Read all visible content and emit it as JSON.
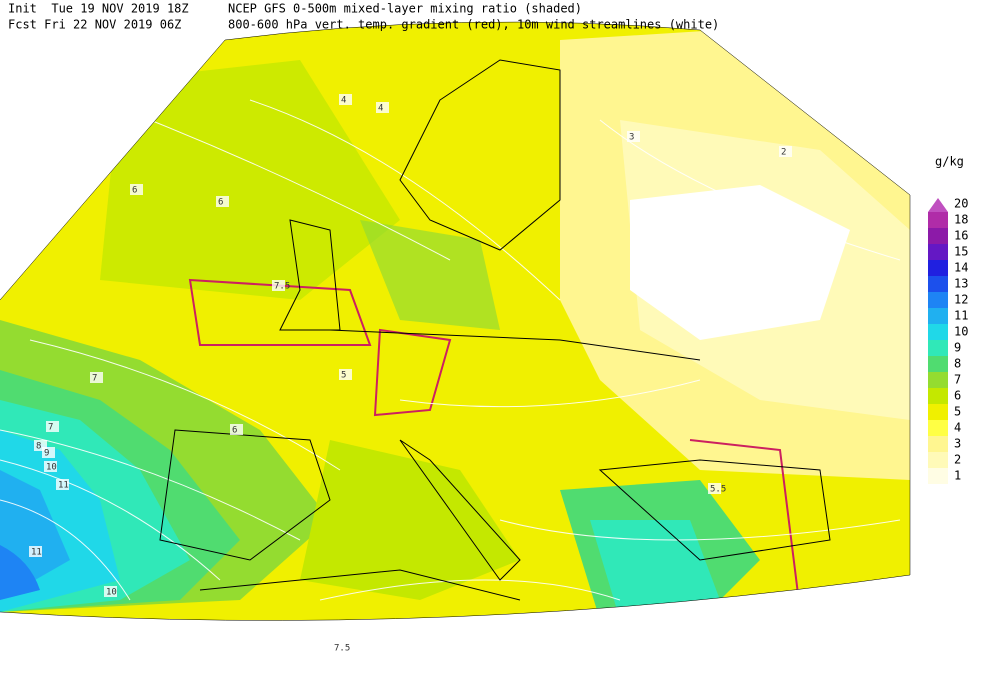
{
  "header": {
    "line1": "Init  Tue 19 NOV 2019 18Z",
    "line2": "Fcst Fri 22 NOV 2019 06Z",
    "title1": "NCEP GFS 0-500m mixed-layer mixing ratio (shaded)",
    "title2": "800-600 hPa vert. temp. gradient (red), 10m wind streamlines (white)"
  },
  "legend": {
    "unit": "g/kg",
    "levels": [
      {
        "label": "20",
        "color": "#c050c0"
      },
      {
        "label": "18",
        "color": "#b02ca8"
      },
      {
        "label": "16",
        "color": "#8c1aa8"
      },
      {
        "label": "15",
        "color": "#6418c4"
      },
      {
        "label": "14",
        "color": "#2020e0"
      },
      {
        "label": "13",
        "color": "#1c50ec"
      },
      {
        "label": "12",
        "color": "#1e84f4"
      },
      {
        "label": "11",
        "color": "#20b0f0"
      },
      {
        "label": "10",
        "color": "#20d8e8"
      },
      {
        "label": "9",
        "color": "#30e8b8"
      },
      {
        "label": "8",
        "color": "#50dc70"
      },
      {
        "label": "7",
        "color": "#94dc30"
      },
      {
        "label": "6",
        "color": "#c4e800"
      },
      {
        "label": "5",
        "color": "#f0f000"
      },
      {
        "label": "4",
        "color": "#ffff44"
      },
      {
        "label": "3",
        "color": "#fff690"
      },
      {
        "label": "2",
        "color": "#fffab8"
      },
      {
        "label": "1",
        "color": "#fffde4"
      }
    ]
  },
  "map_labels": [
    "4",
    "4",
    "3",
    "2",
    "6",
    "6",
    "7",
    "7",
    "8",
    "9",
    "10",
    "11",
    "11",
    "10",
    "7.5",
    "5.5",
    "7.5",
    "5",
    "6"
  ]
}
